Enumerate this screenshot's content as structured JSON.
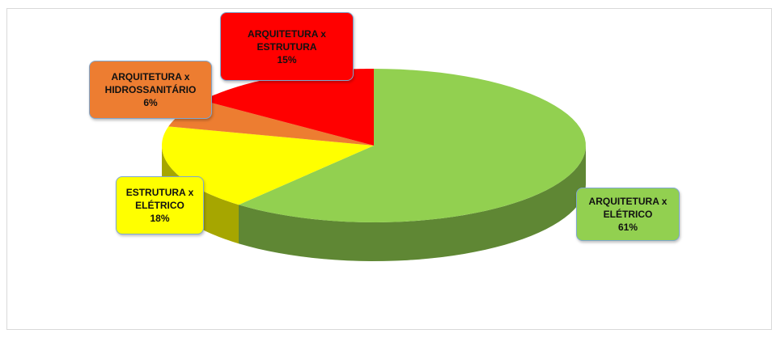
{
  "chart_data": {
    "type": "pie",
    "categories": [
      "ARQUITETURA x ELÉTRICO",
      "ESTRUTURA x ELÉTRICO",
      "ARQUITETURA x HIDROSSANITÁRIO",
      "ARQUITETURA x ESTRUTURA"
    ],
    "values": [
      61,
      18,
      6,
      15
    ],
    "value_labels": [
      "61%",
      "18%",
      "6%",
      "15%"
    ],
    "colors": [
      "#92d050",
      "#ffff00",
      "#ed7d31",
      "#ff0000"
    ]
  }
}
